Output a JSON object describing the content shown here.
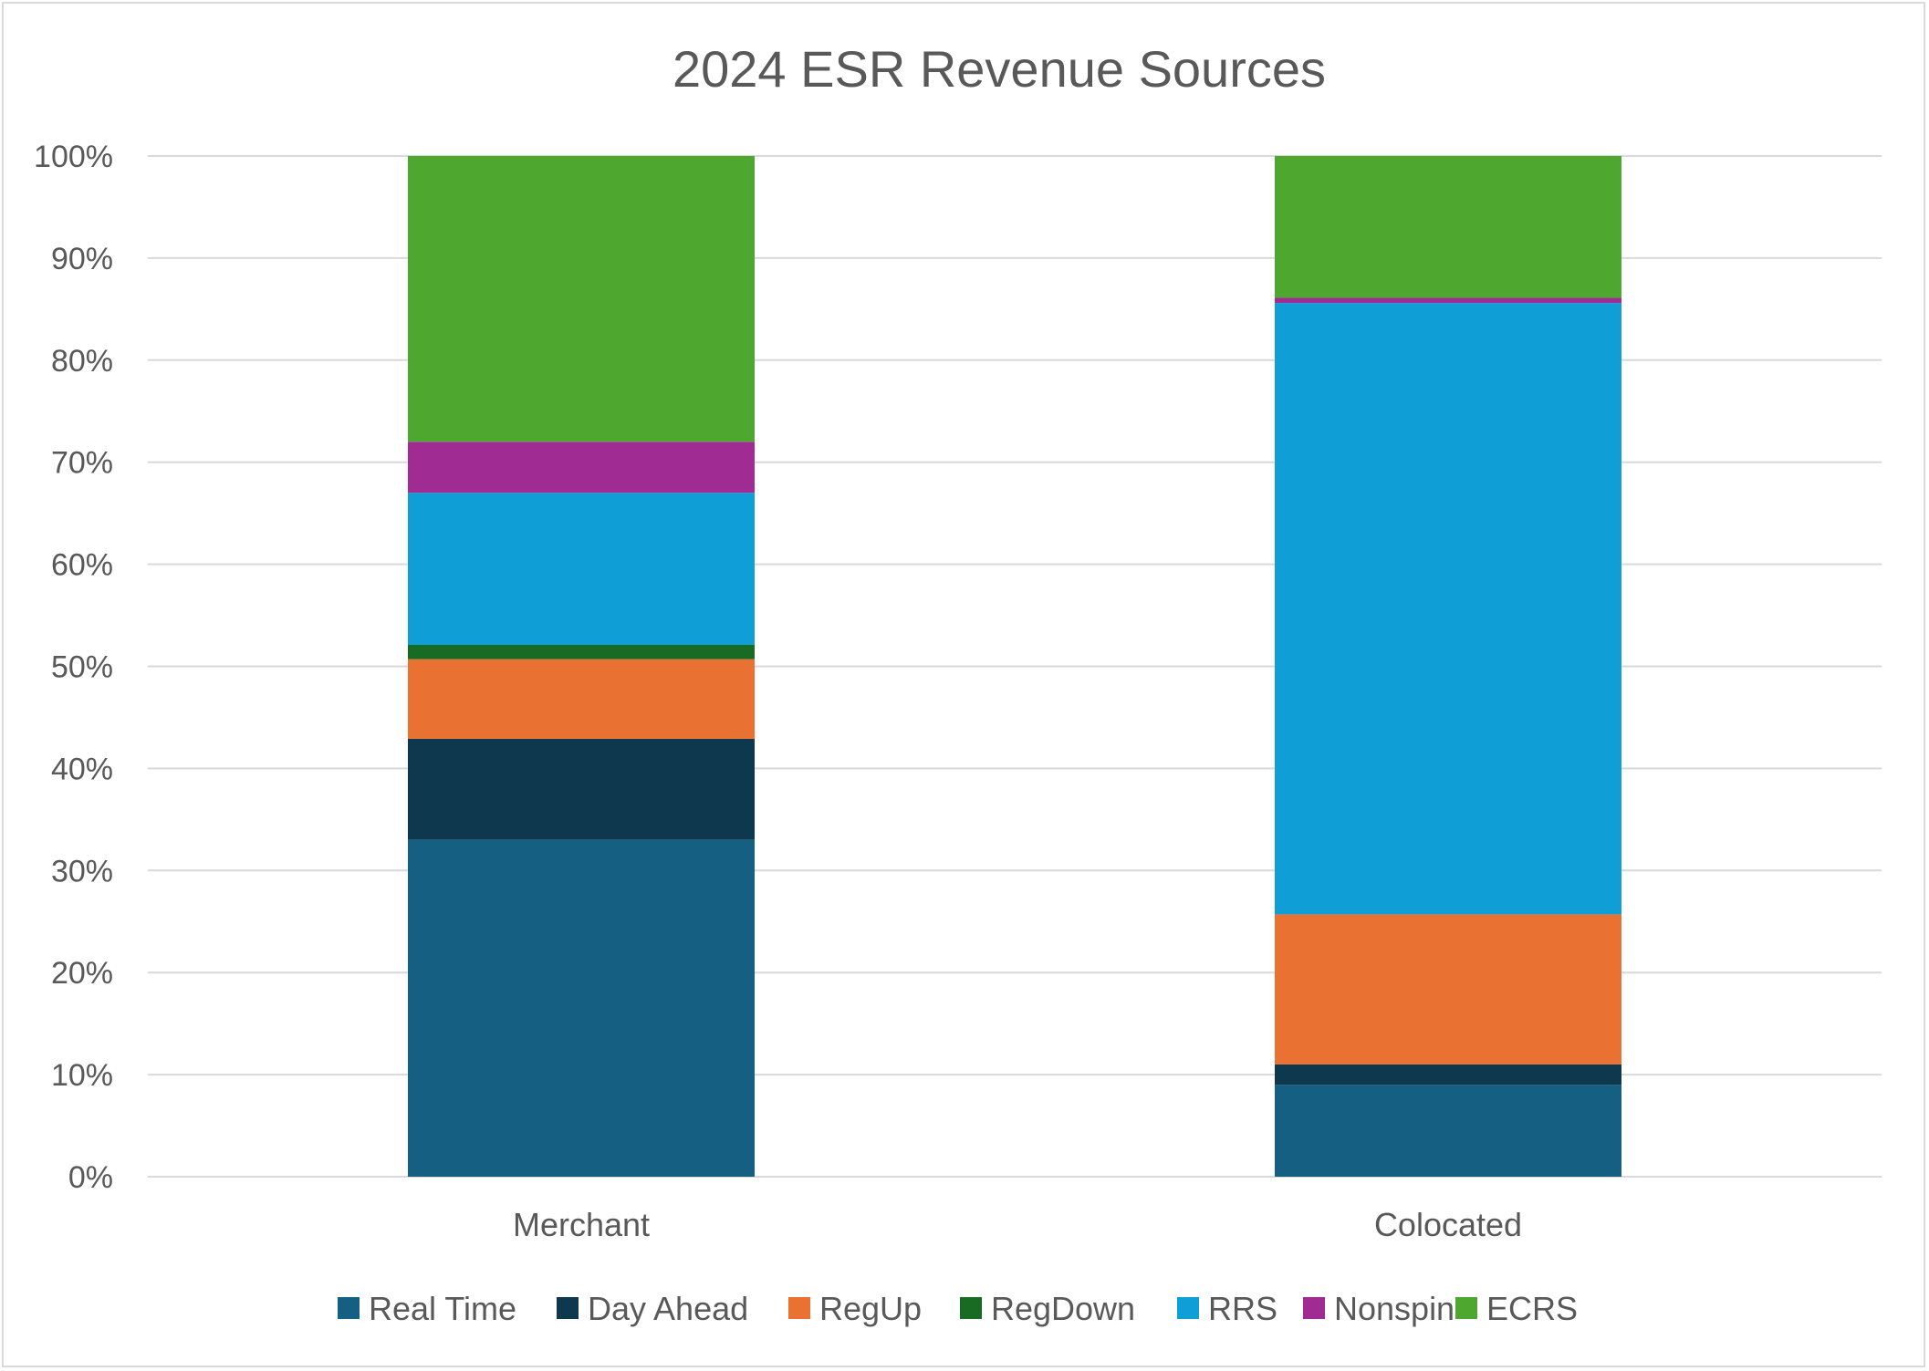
{
  "chart_data": {
    "type": "bar",
    "stacked": true,
    "title": "2024 ESR Revenue Sources",
    "categories": [
      "Merchant",
      "Colocated"
    ],
    "y_tick_labels": [
      "0%",
      "10%",
      "20%",
      "30%",
      "40%",
      "50%",
      "60%",
      "70%",
      "80%",
      "90%",
      "100%"
    ],
    "ylim": [
      0,
      100
    ],
    "grid": true,
    "legend_position": "bottom",
    "series": [
      {
        "name": "Real Time",
        "color": "#156082",
        "values": [
          33.0,
          9.0
        ]
      },
      {
        "name": "Day Ahead",
        "color": "#0e384e",
        "values": [
          9.9,
          2.0
        ]
      },
      {
        "name": "RegUp",
        "color": "#e97132",
        "values": [
          7.8,
          14.7
        ]
      },
      {
        "name": "RegDown",
        "color": "#196b24",
        "values": [
          1.4,
          0.0
        ]
      },
      {
        "name": "RRS",
        "color": "#0f9ed5",
        "values": [
          14.9,
          59.9
        ]
      },
      {
        "name": "Nonspin",
        "color": "#a02b93",
        "values": [
          5.0,
          0.5
        ]
      },
      {
        "name": "ECRS",
        "color": "#4ea72e",
        "values": [
          28.0,
          13.9
        ]
      }
    ]
  }
}
